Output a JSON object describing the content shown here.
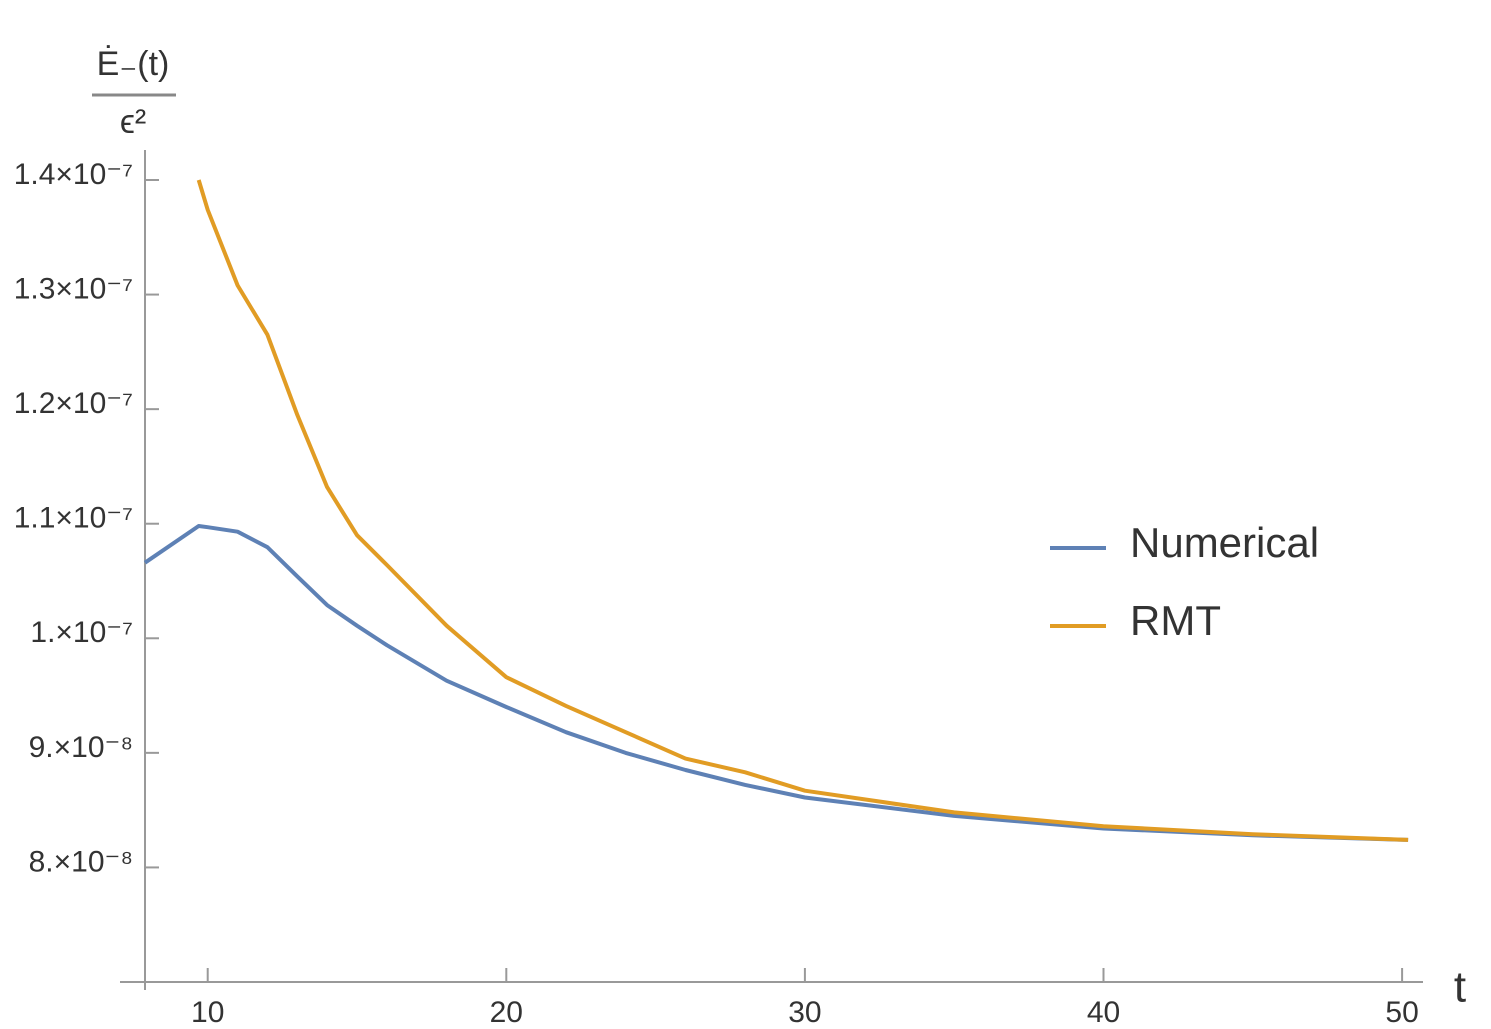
{
  "chart_data": {
    "type": "line",
    "xlabel": "t",
    "ylabel": {
      "numerator": "Ė₋(t)",
      "denominator": "ϵ²"
    },
    "x": [
      7.9,
      9.7,
      10,
      11,
      12,
      13,
      14,
      15,
      16,
      18,
      20,
      22,
      24,
      26,
      28,
      30,
      35,
      40,
      45,
      50.2
    ],
    "series": [
      {
        "name": "Numerical",
        "color": "#5e81b5",
        "values": [
          1.066e-07,
          1.098e-07,
          1.097e-07,
          1.093e-07,
          1.0795e-07,
          1.054e-07,
          1.029e-07,
          1.011e-07,
          9.94e-08,
          9.63e-08,
          9.4e-08,
          9.18e-08,
          9e-08,
          8.85e-08,
          8.72e-08,
          8.61e-08,
          8.45e-08,
          8.34e-08,
          8.28e-08,
          8.24e-08
        ]
      },
      {
        "name": "RMT",
        "color": "#e19c24",
        "values": [
          null,
          1.4e-07,
          1.374e-07,
          1.308e-07,
          1.265e-07,
          1.195e-07,
          1.132e-07,
          1.09e-07,
          1.064e-07,
          1.011e-07,
          9.66e-08,
          9.41e-08,
          9.18e-08,
          8.95e-08,
          8.83e-08,
          8.67e-08,
          8.48e-08,
          8.36e-08,
          8.29e-08,
          8.24e-08
        ]
      }
    ],
    "xlim": [
      7.9,
      50.7
    ],
    "ylim": [
      7e-08,
      1.4e-07
    ],
    "xticks": [
      10,
      20,
      30,
      40,
      50
    ],
    "yticks": [
      {
        "value": 8e-08,
        "label": "8.×10⁻⁸"
      },
      {
        "value": 9e-08,
        "label": "9.×10⁻⁸"
      },
      {
        "value": 1e-07,
        "label": "1.×10⁻⁷"
      },
      {
        "value": 1.1e-07,
        "label": "1.1×10⁻⁷"
      },
      {
        "value": 1.2e-07,
        "label": "1.2×10⁻⁷"
      },
      {
        "value": 1.3e-07,
        "label": "1.3×10⁻⁷"
      },
      {
        "value": 1.4e-07,
        "label": "1.4×10⁻⁷"
      }
    ],
    "grid": false,
    "legend": "right"
  }
}
